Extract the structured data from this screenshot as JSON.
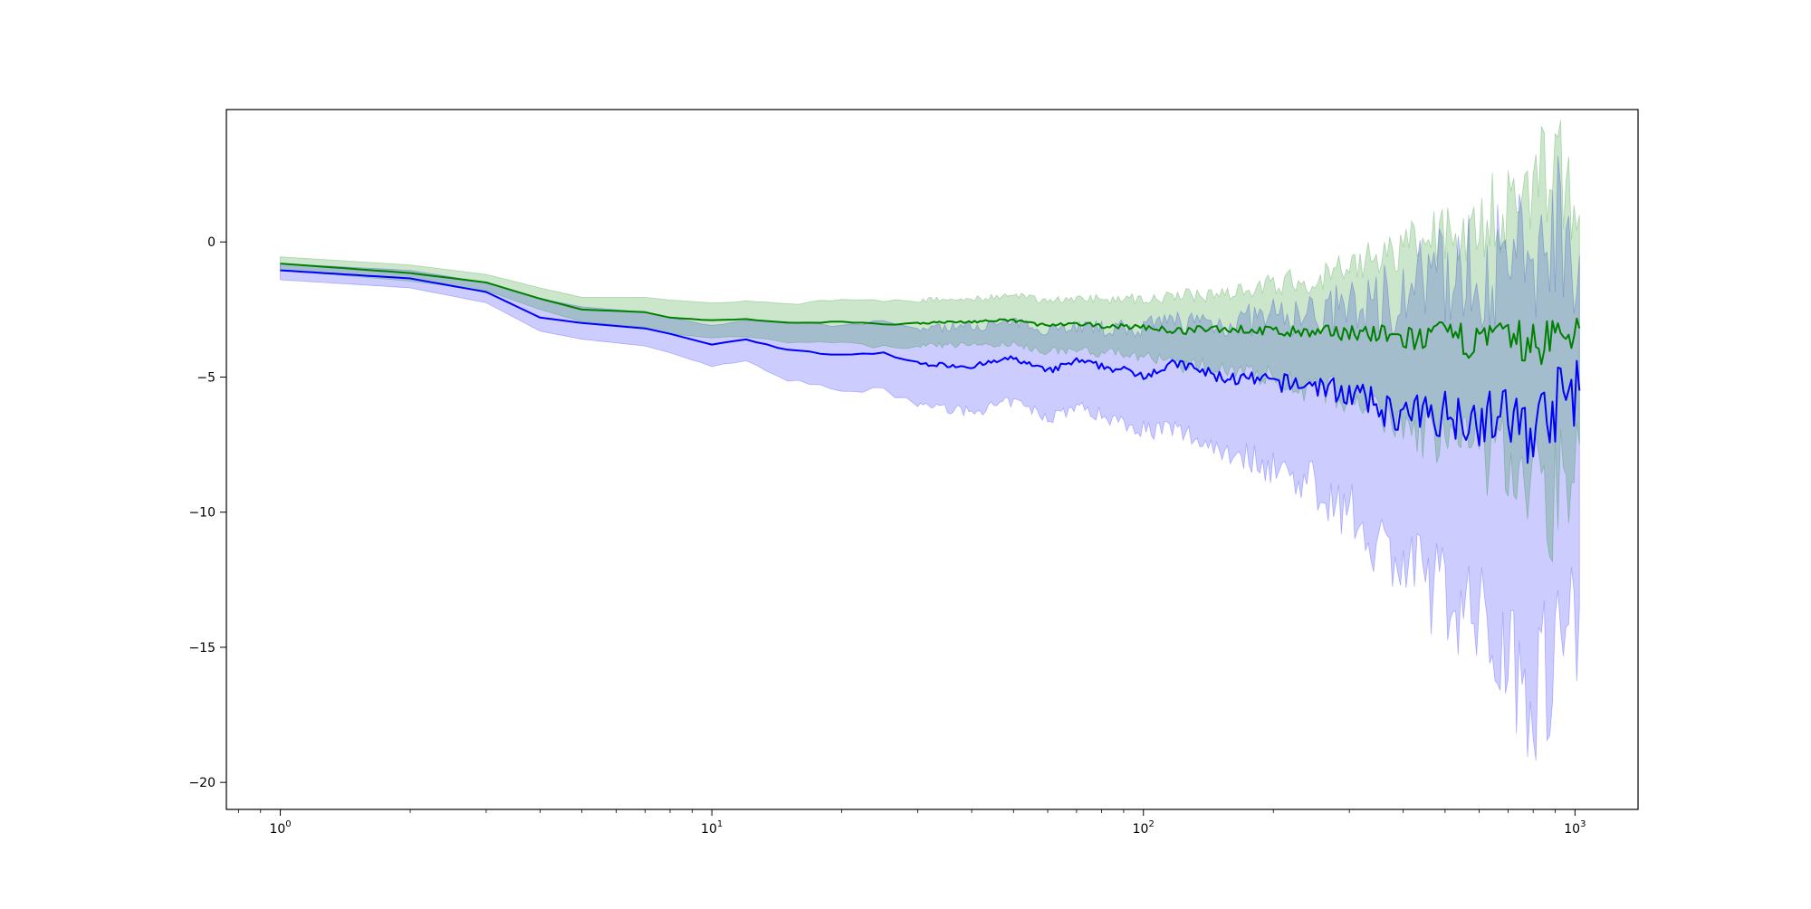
{
  "chart_data": {
    "type": "line",
    "title": "",
    "xlabel": "",
    "ylabel": "",
    "x_scale": "log",
    "xlim": [
      0.75,
      1400
    ],
    "ylim": [
      -21,
      4.9
    ],
    "grid": false,
    "legend": "none",
    "x_ticks": [
      {
        "value": 1,
        "base": "10",
        "exp": "0"
      },
      {
        "value": 10,
        "base": "10",
        "exp": "1"
      },
      {
        "value": 100,
        "base": "10",
        "exp": "2"
      },
      {
        "value": 1000,
        "base": "10",
        "exp": "3"
      }
    ],
    "y_ticks": [
      {
        "value": 0,
        "label": "0"
      },
      {
        "value": -5,
        "label": "−5"
      },
      {
        "value": -10,
        "label": "−10"
      },
      {
        "value": -15,
        "label": "−15"
      },
      {
        "value": -20,
        "label": "−20"
      }
    ],
    "series": [
      {
        "color": "#0000ff",
        "band_color": "#0000ff",
        "band_opacity": 0.2,
        "x": [
          1,
          2,
          3,
          4,
          5,
          7,
          8,
          10,
          12,
          15,
          20,
          25,
          30,
          40,
          50,
          60,
          70,
          80,
          100,
          120,
          150,
          200,
          250,
          300,
          400,
          500,
          600,
          700,
          800,
          900,
          1024
        ],
        "mean": [
          -1.05,
          -1.35,
          -1.85,
          -2.8,
          -3.0,
          -3.2,
          -3.4,
          -3.8,
          -3.6,
          -4.0,
          -4.2,
          -4.1,
          -4.5,
          -4.6,
          -4.3,
          -4.8,
          -4.4,
          -4.6,
          -4.9,
          -4.5,
          -5.0,
          -5.2,
          -5.3,
          -5.6,
          -6.5,
          -6.3,
          -6.5,
          -6.5,
          -7.0,
          -6.0,
          -5.5
        ],
        "upper": [
          -0.8,
          -1.05,
          -1.5,
          -2.1,
          -2.4,
          -2.6,
          -2.8,
          -3.1,
          -2.9,
          -3.0,
          -3.1,
          -3.0,
          -3.2,
          -3.1,
          -3.0,
          -3.2,
          -3.1,
          -3.2,
          -3.2,
          -2.9,
          -3.0,
          -2.8,
          -2.7,
          -2.5,
          -1.8,
          -1.2,
          -1.0,
          -0.9,
          -0.6,
          1.0,
          -0.5
        ],
        "lower": [
          -1.4,
          -1.7,
          -2.25,
          -3.3,
          -3.6,
          -3.85,
          -4.1,
          -4.6,
          -4.4,
          -5.1,
          -5.5,
          -5.5,
          -6.0,
          -6.3,
          -5.9,
          -6.5,
          -6.1,
          -6.4,
          -6.9,
          -7.0,
          -7.6,
          -8.3,
          -9.0,
          -10.0,
          -12.0,
          -13.0,
          -14.0,
          -15.0,
          -16.5,
          -15.0,
          -13.5
        ]
      },
      {
        "color": "#008000",
        "band_color": "#008000",
        "band_opacity": 0.2,
        "x": [
          1,
          2,
          3,
          4,
          5,
          7,
          8,
          10,
          12,
          15,
          20,
          25,
          30,
          40,
          50,
          60,
          70,
          80,
          100,
          120,
          150,
          200,
          250,
          300,
          400,
          500,
          600,
          700,
          800,
          900,
          1024
        ],
        "mean": [
          -0.8,
          -1.15,
          -1.5,
          -2.1,
          -2.5,
          -2.6,
          -2.8,
          -2.9,
          -2.85,
          -3.0,
          -2.95,
          -3.05,
          -3.0,
          -2.95,
          -2.9,
          -3.1,
          -3.05,
          -3.1,
          -3.15,
          -3.3,
          -3.2,
          -3.3,
          -3.4,
          -3.3,
          -3.6,
          -3.5,
          -3.7,
          -3.6,
          -3.8,
          -3.6,
          -3.2
        ],
        "upper": [
          -0.55,
          -0.85,
          -1.2,
          -1.7,
          -2.05,
          -2.05,
          -2.15,
          -2.25,
          -2.2,
          -2.3,
          -2.15,
          -2.2,
          -2.15,
          -2.1,
          -2.0,
          -2.15,
          -2.1,
          -2.1,
          -2.1,
          -2.05,
          -1.85,
          -1.6,
          -1.3,
          -1.0,
          -0.3,
          0.3,
          0.8,
          1.3,
          1.8,
          3.3,
          1.0
        ],
        "lower": [
          -1.05,
          -1.45,
          -1.8,
          -2.5,
          -2.95,
          -3.15,
          -3.4,
          -3.55,
          -3.5,
          -3.7,
          -3.75,
          -3.9,
          -3.85,
          -3.8,
          -3.8,
          -4.05,
          -4.0,
          -4.1,
          -4.2,
          -4.6,
          -4.6,
          -5.0,
          -5.5,
          -5.7,
          -6.9,
          -7.2,
          -7.8,
          -8.0,
          -8.8,
          -9.5,
          -7.5
        ]
      }
    ]
  }
}
